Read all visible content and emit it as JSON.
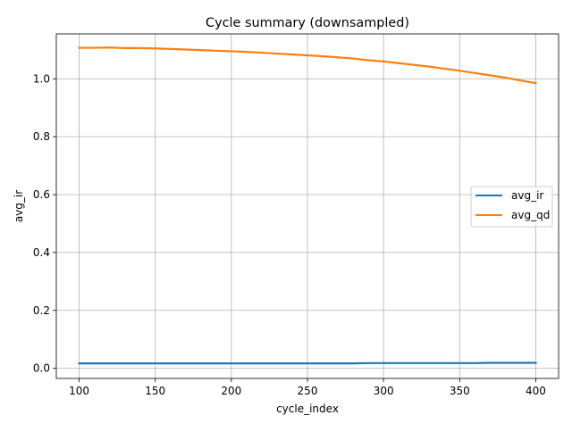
{
  "chart_data": {
    "type": "line",
    "title": "Cycle summary (downsampled)",
    "xlabel": "cycle_index",
    "ylabel": "avg_ir",
    "xlim": [
      85,
      415
    ],
    "ylim": [
      -0.035,
      1.155
    ],
    "xticks": [
      100,
      150,
      200,
      250,
      300,
      350,
      400
    ],
    "xtick_labels": [
      "100",
      "150",
      "200",
      "250",
      "300",
      "350",
      "400"
    ],
    "yticks": [
      0.0,
      0.2,
      0.4,
      0.6,
      0.8,
      1.0
    ],
    "ytick_labels": [
      "0.0",
      "0.2",
      "0.4",
      "0.6",
      "0.8",
      "1.0"
    ],
    "grid": true,
    "legend_position": "center-right",
    "x": [
      100,
      110,
      120,
      130,
      140,
      150,
      160,
      170,
      180,
      190,
      200,
      210,
      220,
      230,
      240,
      250,
      260,
      270,
      280,
      290,
      300,
      310,
      320,
      330,
      340,
      350,
      360,
      370,
      380,
      390,
      400
    ],
    "series": [
      {
        "name": "avg_ir",
        "color": "#1f77b4",
        "values": [
          0.017,
          0.017,
          0.017,
          0.017,
          0.017,
          0.017,
          0.017,
          0.017,
          0.017,
          0.017,
          0.017,
          0.017,
          0.017,
          0.017,
          0.017,
          0.017,
          0.017,
          0.017,
          0.017,
          0.018,
          0.018,
          0.018,
          0.018,
          0.018,
          0.018,
          0.018,
          0.018,
          0.019,
          0.019,
          0.019,
          0.019
        ]
      },
      {
        "name": "avg_qd",
        "color": "#ff7f0e",
        "values": [
          1.107,
          1.107,
          1.108,
          1.106,
          1.106,
          1.105,
          1.103,
          1.101,
          1.099,
          1.097,
          1.095,
          1.093,
          1.09,
          1.087,
          1.084,
          1.081,
          1.078,
          1.074,
          1.07,
          1.064,
          1.06,
          1.054,
          1.048,
          1.042,
          1.035,
          1.028,
          1.02,
          1.012,
          1.004,
          0.994,
          0.985
        ]
      }
    ]
  }
}
